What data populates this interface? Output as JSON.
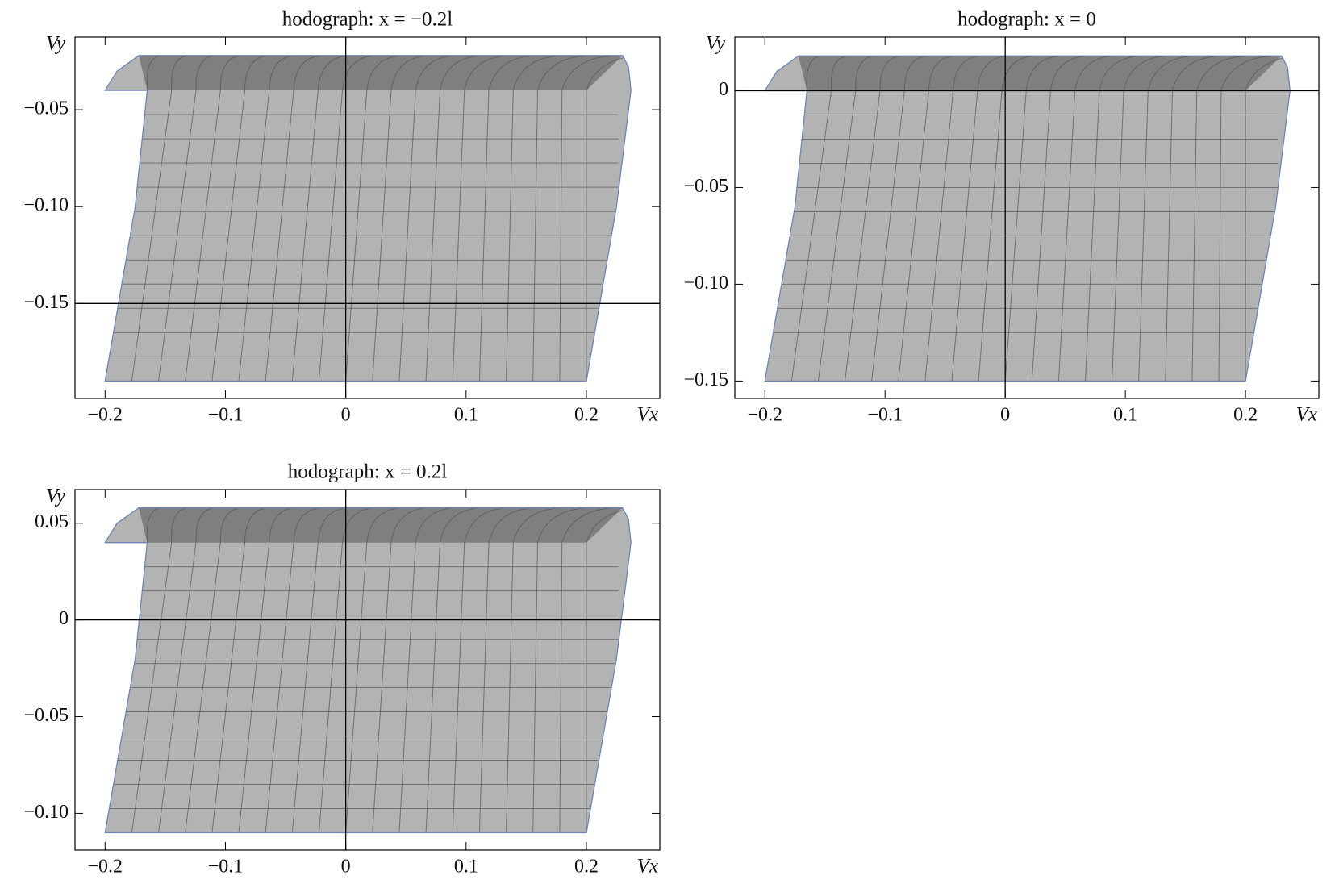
{
  "chart_data": [
    {
      "type": "hodograph",
      "title": "hodograph: x = −0.2l",
      "xlabel": "Vx",
      "ylabel": "Vy",
      "xlim": [
        -0.225,
        0.261
      ],
      "ylim": [
        -0.199,
        -0.0125
      ],
      "xticks": [
        {
          "value": -0.2,
          "label": "−0.2"
        },
        {
          "value": -0.1,
          "label": "−0.1"
        },
        0,
        0.1,
        0.2
      ],
      "yticks": [
        {
          "value": -0.05,
          "label": "−0.05"
        },
        {
          "value": -0.1,
          "label": "−0.10"
        },
        {
          "value": -0.15,
          "label": "−0.15"
        }
      ],
      "axes_origin": {
        "x": 0,
        "y": -0.15
      },
      "fill": "#b3b3b3",
      "band_fill": "#6e6e6e",
      "edge": "#6f86b5",
      "outline": {
        "x": [
          -0.2,
          0.2,
          0.225,
          0.237,
          0.235,
          0.23,
          -0.172,
          -0.19,
          -0.2,
          -0.165,
          -0.175
        ],
        "y": [
          -0.19,
          -0.19,
          -0.1,
          -0.04,
          -0.028,
          -0.022,
          -0.022,
          -0.03,
          -0.04,
          -0.04,
          -0.1
        ]
      },
      "band": {
        "x": [
          -0.172,
          0.23,
          0.2,
          -0.165
        ],
        "y": [
          -0.022,
          -0.022,
          -0.04,
          -0.04
        ]
      }
    },
    {
      "type": "hodograph",
      "title": "hodograph: x = 0",
      "xlabel": "Vx",
      "ylabel": "Vy",
      "xlim": [
        -0.225,
        0.261
      ],
      "ylim": [
        -0.159,
        0.0277
      ],
      "xticks": [
        {
          "value": -0.2,
          "label": "−0.2"
        },
        {
          "value": -0.1,
          "label": "−0.1"
        },
        0,
        0.1,
        0.2
      ],
      "yticks": [
        0,
        {
          "value": -0.05,
          "label": "−0.05"
        },
        {
          "value": -0.1,
          "label": "−0.10"
        },
        {
          "value": -0.15,
          "label": "−0.15"
        }
      ],
      "axes_origin": {
        "x": 0,
        "y": 0
      },
      "fill": "#b3b3b3",
      "band_fill": "#6e6e6e",
      "edge": "#6f86b5",
      "outline": {
        "x": [
          -0.2,
          0.2,
          0.225,
          0.237,
          0.235,
          0.23,
          -0.172,
          -0.19,
          -0.2,
          -0.165,
          -0.175
        ],
        "y": [
          -0.15,
          -0.15,
          -0.06,
          0,
          0.012,
          0.018,
          0.018,
          0.01,
          0,
          0,
          -0.06
        ]
      },
      "band": {
        "x": [
          -0.172,
          0.23,
          0.2,
          -0.165
        ],
        "y": [
          0.018,
          0.018,
          0,
          0
        ]
      }
    },
    {
      "type": "hodograph",
      "title": "hodograph: x = 0.2l",
      "xlabel": "Vx",
      "ylabel": "Vy",
      "xlim": [
        -0.225,
        0.261
      ],
      "ylim": [
        -0.119,
        0.0674
      ],
      "xticks": [
        {
          "value": -0.2,
          "label": "−0.2"
        },
        {
          "value": -0.1,
          "label": "−0.1"
        },
        0,
        0.1,
        0.2
      ],
      "yticks": [
        0.05,
        0,
        {
          "value": -0.05,
          "label": "−0.05"
        },
        {
          "value": -0.1,
          "label": "−0.10"
        }
      ],
      "axes_origin": {
        "x": 0,
        "y": 0
      },
      "fill": "#b3b3b3",
      "band_fill": "#6e6e6e",
      "edge": "#6f86b5",
      "outline": {
        "x": [
          -0.2,
          0.2,
          0.225,
          0.237,
          0.235,
          0.23,
          -0.172,
          -0.19,
          -0.2,
          -0.165,
          -0.175
        ],
        "y": [
          -0.11,
          -0.11,
          -0.02,
          0.04,
          0.052,
          0.058,
          0.058,
          0.05,
          0.04,
          0.04,
          -0.02
        ]
      },
      "band": {
        "x": [
          -0.172,
          0.23,
          0.2,
          -0.165
        ],
        "y": [
          0.058,
          0.058,
          0.04,
          0.04
        ]
      }
    }
  ]
}
